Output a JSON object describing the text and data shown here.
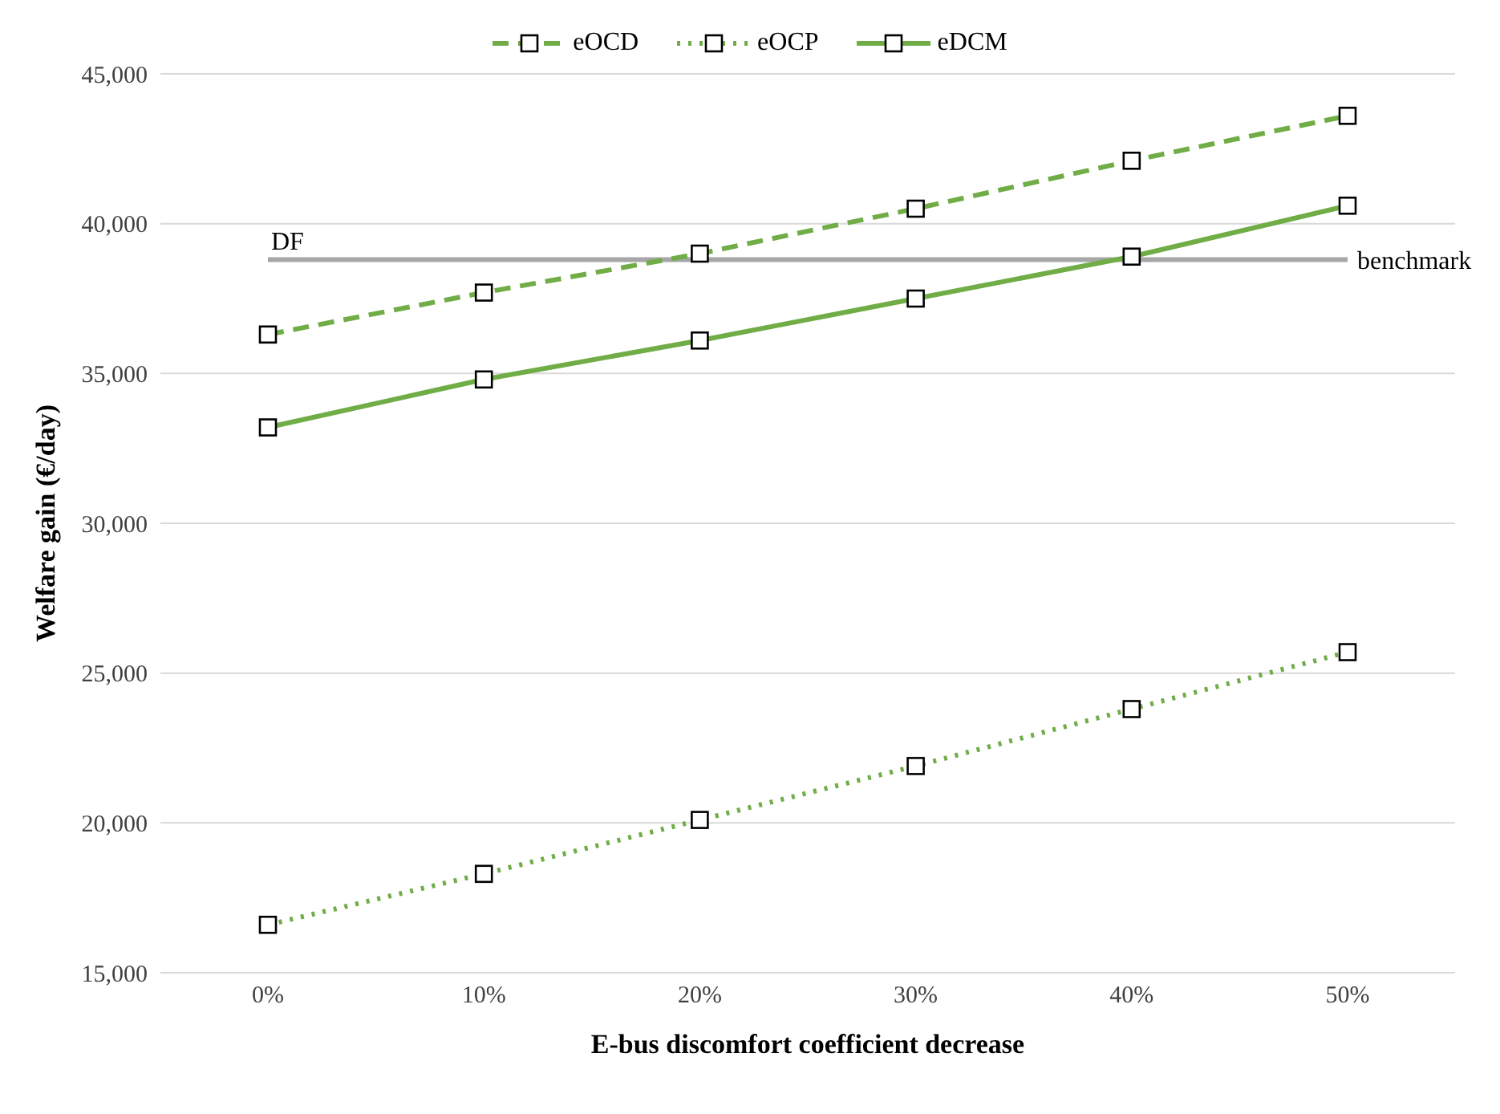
{
  "chart_data": {
    "type": "line",
    "xlabel": "E-bus discomfort coefficient decrease",
    "ylabel": "Welfare gain (€/day)",
    "categories": [
      "0%",
      "10%",
      "20%",
      "30%",
      "40%",
      "50%"
    ],
    "series": [
      {
        "name": "eOCD",
        "color": "#70ad47",
        "line_style": "dashed",
        "values": [
          36300,
          37700,
          39000,
          40500,
          42100,
          43600
        ]
      },
      {
        "name": "eOCP",
        "color": "#70ad47",
        "line_style": "dotted",
        "values": [
          16600,
          18300,
          20100,
          21900,
          23800,
          25700
        ]
      },
      {
        "name": "eDCM",
        "color": "#70ad47",
        "line_style": "solid",
        "values": [
          33200,
          34800,
          36100,
          37500,
          38900,
          40600
        ]
      }
    ],
    "ylim": [
      15000,
      45000
    ],
    "yticks": [
      {
        "value": 15000,
        "label": "15,000"
      },
      {
        "value": 20000,
        "label": "20,000"
      },
      {
        "value": 25000,
        "label": "25,000"
      },
      {
        "value": 30000,
        "label": "30,000"
      },
      {
        "value": 35000,
        "label": "35,000"
      },
      {
        "value": 40000,
        "label": "40,000"
      },
      {
        "value": 45000,
        "label": "45,000"
      }
    ],
    "ref_lines": [
      {
        "axis": "y",
        "value": 38800,
        "label": "benchmark",
        "color": "#a6a6a6"
      }
    ],
    "annotations": [
      {
        "text": "DF",
        "x": "0%",
        "y": 38800
      }
    ],
    "grid": "y",
    "legend": "top",
    "marker": "square"
  }
}
